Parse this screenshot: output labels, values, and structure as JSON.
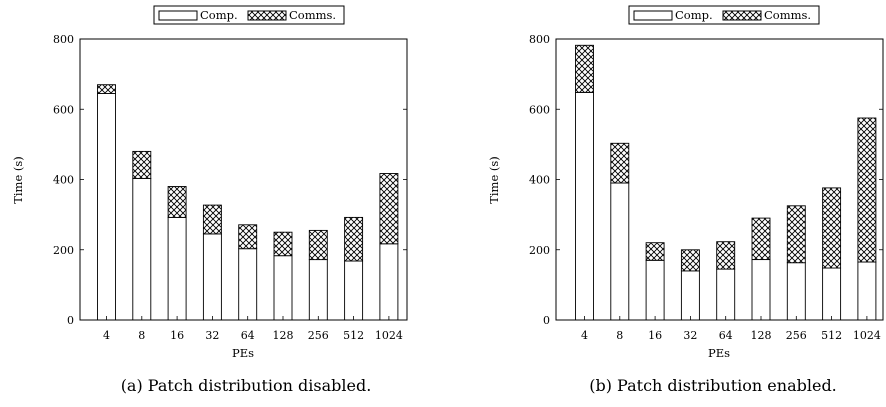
{
  "chart_data": [
    {
      "type": "bar",
      "stacked": true,
      "caption": "(a) Patch distribution disabled.",
      "xlabel": "PEs",
      "ylabel": "Time (s)",
      "ylim": [
        0,
        800
      ],
      "yticks": [
        0,
        200,
        400,
        600,
        800
      ],
      "categories": [
        "4",
        "8",
        "16",
        "32",
        "64",
        "128",
        "256",
        "512",
        "1024"
      ],
      "series": [
        {
          "name": "Comp.",
          "pattern": "white",
          "values": [
            645,
            403,
            292,
            245,
            203,
            183,
            172,
            168,
            217
          ]
        },
        {
          "name": "Comms.",
          "pattern": "crosshatch",
          "values": [
            25,
            77,
            88,
            82,
            68,
            67,
            83,
            124,
            200
          ]
        }
      ],
      "legend": "top-center",
      "grid": false
    },
    {
      "type": "bar",
      "stacked": true,
      "caption": "(b) Patch distribution enabled.",
      "xlabel": "PEs",
      "ylabel": "Time (s)",
      "ylim": [
        0,
        800
      ],
      "yticks": [
        0,
        200,
        400,
        600,
        800
      ],
      "categories": [
        "4",
        "8",
        "16",
        "32",
        "64",
        "128",
        "256",
        "512",
        "1024"
      ],
      "series": [
        {
          "name": "Comp.",
          "pattern": "white",
          "values": [
            648,
            390,
            170,
            140,
            145,
            172,
            163,
            148,
            165
          ]
        },
        {
          "name": "Comms.",
          "pattern": "crosshatch",
          "values": [
            134,
            113,
            50,
            60,
            78,
            118,
            162,
            228,
            410
          ]
        }
      ],
      "legend": "top-center",
      "grid": false
    }
  ]
}
